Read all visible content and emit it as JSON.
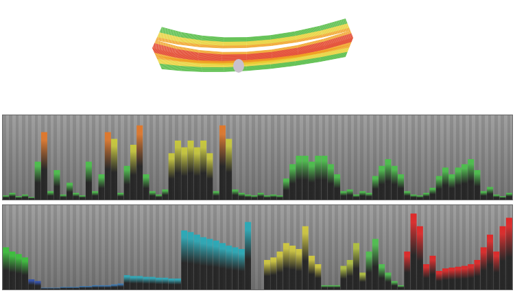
{
  "chart_data": [
    {
      "type": "bar",
      "tick_labels": false,
      "ylim": [
        0,
        100
      ],
      "values": [
        5,
        8,
        4,
        6,
        3,
        45,
        80,
        10,
        35,
        6,
        20,
        8,
        5,
        45,
        10,
        30,
        80,
        72,
        8,
        40,
        65,
        88,
        30,
        10,
        6,
        12,
        55,
        70,
        62,
        70,
        62,
        70,
        55,
        10,
        88,
        72,
        12,
        8,
        6,
        5,
        8,
        5,
        6,
        5,
        25,
        42,
        52,
        52,
        45,
        52,
        52,
        42,
        30,
        10,
        12,
        6,
        10,
        8,
        28,
        40,
        48,
        40,
        30,
        10,
        6,
        5,
        8,
        14,
        28,
        38,
        30,
        38,
        42,
        48,
        35,
        10,
        15,
        6,
        4,
        8
      ],
      "colors": [
        "#4cc04c",
        "#4cc04c",
        "#4cc04c",
        "#4cc04c",
        "#4cc04c",
        "#4cc04c",
        "#e0782c",
        "#4cc04c",
        "#4cc04c",
        "#4cc04c",
        "#4cc04c",
        "#4cc04c",
        "#4cc04c",
        "#4cc04c",
        "#4cc04c",
        "#4cc04c",
        "#e0782c",
        "#c8c83c",
        "#4cc04c",
        "#4cc04c",
        "#c8c83c",
        "#e0782c",
        "#4cc04c",
        "#4cc04c",
        "#4cc04c",
        "#4cc04c",
        "#c8c83c",
        "#c8c83c",
        "#c8c83c",
        "#c8c83c",
        "#c8c83c",
        "#c8c83c",
        "#c8c83c",
        "#4cc04c",
        "#e0782c",
        "#c8c83c",
        "#4cc04c",
        "#4cc04c",
        "#4cc04c",
        "#4cc04c",
        "#4cc04c",
        "#4cc04c",
        "#4cc04c",
        "#4cc04c",
        "#4cc04c",
        "#4cc04c",
        "#4cc04c",
        "#4cc04c",
        "#4cc04c",
        "#4cc04c",
        "#4cc04c",
        "#4cc04c",
        "#4cc04c",
        "#4cc04c",
        "#4cc04c",
        "#4cc04c",
        "#4cc04c",
        "#4cc04c",
        "#4cc04c",
        "#4cc04c",
        "#4cc04c",
        "#4cc04c",
        "#4cc04c",
        "#4cc04c",
        "#4cc04c",
        "#4cc04c",
        "#4cc04c",
        "#4cc04c",
        "#4cc04c",
        "#4cc04c",
        "#4cc04c",
        "#4cc04c",
        "#4cc04c",
        "#4cc04c",
        "#4cc04c",
        "#4cc04c",
        "#4cc04c",
        "#4cc04c",
        "#4cc04c",
        "#4cc04c"
      ]
    },
    {
      "type": "bar",
      "tick_labels": false,
      "ylim": [
        0,
        100
      ],
      "values": [
        50,
        45,
        42,
        38,
        12,
        10,
        2,
        2,
        2,
        3,
        3,
        3,
        4,
        4,
        5,
        5,
        5,
        6,
        7,
        17,
        16,
        16,
        15,
        15,
        14,
        14,
        13,
        13,
        70,
        68,
        65,
        62,
        60,
        58,
        55,
        52,
        50,
        48,
        80,
        0,
        0,
        35,
        38,
        45,
        55,
        52,
        48,
        75,
        40,
        30,
        5,
        5,
        5,
        28,
        35,
        55,
        20,
        45,
        60,
        30,
        20,
        10,
        5,
        45,
        90,
        75,
        30,
        40,
        22,
        25,
        26,
        27,
        28,
        30,
        35,
        50,
        65,
        45,
        75,
        85
      ],
      "colors": [
        "#3cc03c",
        "#3cc03c",
        "#3cc03c",
        "#3cc03c",
        "#3050b0",
        "#3050b0",
        "#3a7ab8",
        "#3a7ab8",
        "#3a7ab8",
        "#3a7ab8",
        "#3a7ab8",
        "#3a7ab8",
        "#3a7ab8",
        "#3a7ab8",
        "#3a7ab8",
        "#3a7ab8",
        "#3a7ab8",
        "#3a7ab8",
        "#3a7ab8",
        "#30a8b8",
        "#30a8b8",
        "#30a8b8",
        "#30a8b8",
        "#30a8b8",
        "#30a8b8",
        "#30a8b8",
        "#30a8b8",
        "#30a8b8",
        "#2aaab8",
        "#2aaab8",
        "#2aaab8",
        "#2aaab8",
        "#2aaab8",
        "#2aaab8",
        "#2aaab8",
        "#2aaab8",
        "#2aaab8",
        "#2aaab8",
        "#2aaab8",
        "#707070",
        "#707070",
        "#d0c840",
        "#d0c840",
        "#d0c840",
        "#d0c840",
        "#d0c840",
        "#d0c840",
        "#d0c840",
        "#d0c840",
        "#d0c840",
        "#50c050",
        "#50c050",
        "#50c050",
        "#b0c040",
        "#b0c040",
        "#b0c040",
        "#b0c040",
        "#50c050",
        "#50c050",
        "#50c050",
        "#50c050",
        "#50c050",
        "#50c050",
        "#e02828",
        "#e02828",
        "#e02828",
        "#e02828",
        "#e02828",
        "#e02828",
        "#e02828",
        "#e02828",
        "#e02828",
        "#e02828",
        "#e02828",
        "#e02828",
        "#e02828",
        "#e02828",
        "#e02828",
        "#e02828",
        "#e02828"
      ]
    }
  ]
}
